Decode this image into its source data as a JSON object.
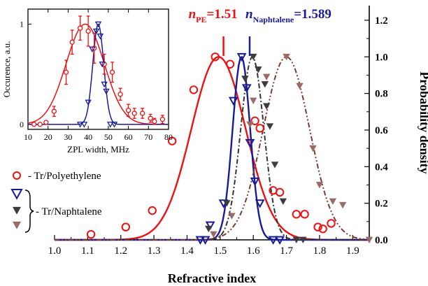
{
  "chart_data": [
    {
      "type": "scatter",
      "title": "",
      "xlabel": "Refractive index",
      "ylabel": "Probability density",
      "xlim": [
        1.0,
        1.95
      ],
      "ylim": [
        0.0,
        1.28
      ],
      "x_ticks": [
        "1.0",
        "1.1",
        "1.2",
        "1.3",
        "1.4",
        "1.5",
        "1.6",
        "1.7",
        "1.8",
        "1.9"
      ],
      "y_ticks": [
        "0.0",
        "0.2",
        "0.4",
        "0.6",
        "0.8",
        "1.0",
        "1.2"
      ],
      "annotations": [
        {
          "text_main": "n",
          "text_sub": "PE",
          "text_value": "=1.51",
          "x": 1.51,
          "color": "#ee1111"
        },
        {
          "text_main": "n",
          "text_sub": "Naphtalene",
          "text_value": "=1.589",
          "x": 1.589,
          "color": "#1a1a99"
        }
      ],
      "legend_text": [
        "- Tr/Polyethylene",
        "- Tr/Naphtalene"
      ],
      "series": [
        {
          "color": "#ee1111",
          "marker": "circle",
          "points": [
            [
              1.11,
              0.03
            ],
            [
              1.215,
              0.07
            ],
            [
              1.295,
              0.16
            ],
            [
              1.355,
              0.54
            ],
            [
              1.42,
              0.82
            ],
            [
              1.485,
              1.0
            ],
            [
              1.53,
              0.96
            ],
            [
              1.605,
              0.65
            ],
            [
              1.62,
              0.61
            ],
            [
              1.66,
              0.27
            ],
            [
              1.68,
              0.26
            ],
            [
              1.73,
              0.14
            ],
            [
              1.755,
              0.14
            ],
            [
              1.795,
              0.07
            ],
            [
              1.81,
              0.06
            ],
            [
              1.835,
              0.09
            ]
          ],
          "fit": {
            "shape": "gaussian",
            "amplitude": 1.0,
            "center": 1.495,
            "width": 0.082
          }
        },
        {
          "color": "#1a1a99",
          "marker": "triangle-down",
          "points": [
            [
              1.44,
              0.0
            ],
            [
              1.455,
              0.0
            ],
            [
              1.47,
              0.08
            ],
            [
              1.51,
              0.2
            ],
            [
              1.54,
              0.76
            ],
            [
              1.565,
              1.0
            ],
            [
              1.58,
              0.83
            ],
            [
              1.59,
              0.53
            ],
            [
              1.605,
              0.32
            ],
            [
              1.62,
              0.2
            ],
            [
              1.66,
              0.0
            ],
            [
              1.68,
              0.0
            ]
          ],
          "fit": {
            "shape": "gaussian",
            "amplitude": 1.0,
            "center": 1.564,
            "width": 0.0265
          }
        },
        {
          "color": "#3c3c3c",
          "marker": "triangle-down-filled",
          "points": [
            [
              1.465,
              0.06
            ],
            [
              1.52,
              0.2
            ],
            [
              1.575,
              0.88
            ],
            [
              1.6,
              1.0
            ],
            [
              1.615,
              0.93
            ],
            [
              1.635,
              0.85
            ],
            [
              1.64,
              0.73
            ],
            [
              1.65,
              0.62
            ],
            [
              1.665,
              0.41
            ],
            [
              1.69,
              0.21
            ],
            [
              1.73,
              0.0
            ],
            [
              1.75,
              0.0
            ]
          ],
          "fit": {
            "shape": "gaussian",
            "amplitude": 1.0,
            "center": 1.597,
            "width": 0.035,
            "dash": "dash-dot",
            "color": "#333333"
          }
        },
        {
          "color": "#9a6a68",
          "marker": "triangle-down-filled",
          "points": [
            [
              1.48,
              0.03
            ],
            [
              1.535,
              0.13
            ],
            [
              1.59,
              0.63
            ],
            [
              1.6,
              0.76
            ],
            [
              1.64,
              0.89
            ],
            [
              1.7,
              1.0
            ],
            [
              1.74,
              0.84
            ],
            [
              1.78,
              0.5
            ],
            [
              1.8,
              0.3
            ],
            [
              1.84,
              0.21
            ],
            [
              1.87,
              0.19
            ],
            [
              1.95,
              0.0
            ]
          ],
          "fit": {
            "shape": "gaussian",
            "amplitude": 1.0,
            "center": 1.7,
            "width": 0.07,
            "dash": "dash-dot-dot",
            "color": "#7b3b32"
          }
        }
      ]
    },
    {
      "type": "scatter",
      "title": "",
      "xlabel": "ZPL width, MHz",
      "ylabel": "Occurence, a.u.",
      "xlim": [
        10,
        80
      ],
      "ylim": [
        -0.05,
        1.15
      ],
      "x_ticks": [
        "10",
        "20",
        "30",
        "40",
        "50",
        "60",
        "70",
        "80"
      ],
      "y_ticks": [
        "0",
        "1"
      ],
      "series": [
        {
          "color": "#ee1111",
          "marker": "circle-errorbar",
          "points": [
            [
              13,
              0.0,
              0.0
            ],
            [
              16,
              0.0,
              0.0
            ],
            [
              19,
              0.02,
              0.0
            ],
            [
              23,
              0.13,
              0.05
            ],
            [
              29,
              0.52,
              0.12
            ],
            [
              32,
              0.82,
              0.12
            ],
            [
              36,
              0.96,
              0.12
            ],
            [
              40,
              0.93,
              0.15
            ],
            [
              43,
              0.76,
              0.15
            ],
            [
              48,
              0.6,
              0.1
            ],
            [
              52,
              0.52,
              0.1
            ],
            [
              56,
              0.3,
              0.06
            ],
            [
              60,
              0.14,
              0.06
            ],
            [
              63,
              0.11,
              0.05
            ],
            [
              67,
              0.11,
              0.05
            ],
            [
              71,
              0.06,
              0.04
            ],
            [
              73,
              0.03,
              0.03
            ],
            [
              77,
              0.05,
              0.04
            ]
          ],
          "fit": {
            "shape": "gaussian",
            "amplitude": 1.0,
            "center": 38.5,
            "width": 9.5
          }
        },
        {
          "color": "#1a1a99",
          "marker": "triangle-down",
          "points": [
            [
              36,
              0.0
            ],
            [
              38,
              0.0
            ],
            [
              40,
              0.22
            ],
            [
              42,
              0.75
            ],
            [
              44,
              0.93
            ],
            [
              45,
              1.0
            ],
            [
              46,
              0.88
            ],
            [
              47,
              0.6
            ],
            [
              48,
              0.4
            ],
            [
              49,
              0.33
            ],
            [
              51,
              0.0
            ],
            [
              53,
              0.0
            ]
          ],
          "fit": {
            "shape": "gaussian",
            "amplitude": 1.0,
            "center": 45,
            "width": 2.7
          }
        }
      ]
    }
  ]
}
